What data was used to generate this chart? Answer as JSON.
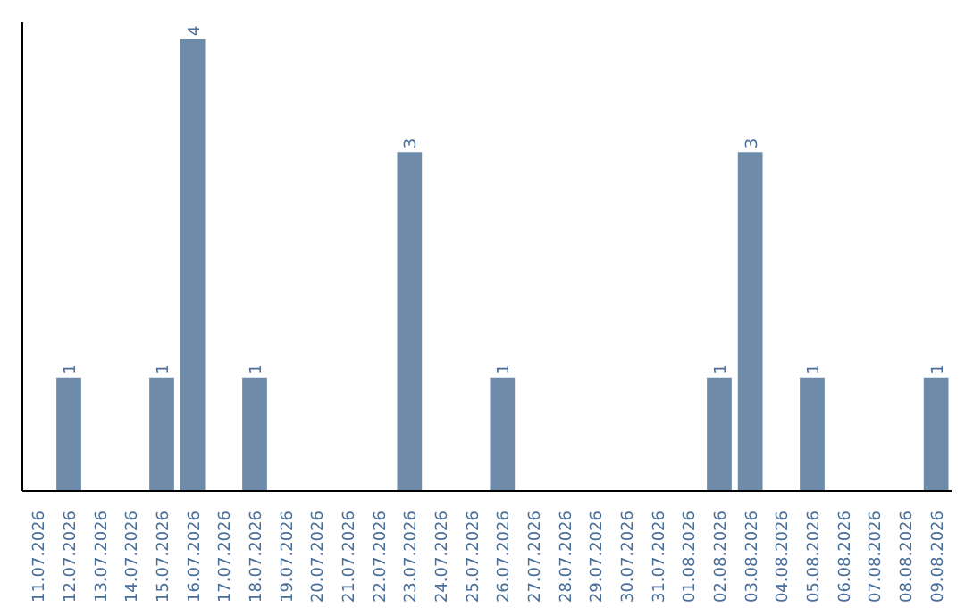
{
  "chart_data": {
    "type": "bar",
    "categories": [
      "11.07.2026",
      "12.07.2026",
      "13.07.2026",
      "14.07.2026",
      "15.07.2026",
      "16.07.2026",
      "17.07.2026",
      "18.07.2026",
      "19.07.2026",
      "20.07.2026",
      "21.07.2026",
      "22.07.2026",
      "23.07.2026",
      "24.07.2026",
      "25.07.2026",
      "26.07.2026",
      "27.07.2026",
      "28.07.2026",
      "29.07.2026",
      "30.07.2026",
      "31.07.2026",
      "01.08.2026",
      "02.08.2026",
      "03.08.2026",
      "04.08.2026",
      "05.08.2026",
      "06.08.2026",
      "07.08.2026",
      "08.08.2026",
      "09.08.2026"
    ],
    "values": [
      0,
      1,
      0,
      0,
      1,
      4,
      0,
      1,
      0,
      0,
      0,
      0,
      3,
      0,
      0,
      1,
      0,
      0,
      0,
      0,
      0,
      0,
      1,
      3,
      0,
      1,
      0,
      0,
      0,
      1
    ],
    "value_labels": [
      null,
      "1",
      null,
      null,
      "1",
      "4",
      null,
      "1",
      null,
      null,
      null,
      null,
      "3",
      null,
      null,
      "1",
      null,
      null,
      null,
      null,
      null,
      null,
      "1",
      "3",
      null,
      "1",
      null,
      null,
      null,
      "1"
    ],
    "color": "#6e8caa",
    "ylim": [
      0,
      4.15
    ],
    "tick_labels": "x",
    "grid": false
  }
}
